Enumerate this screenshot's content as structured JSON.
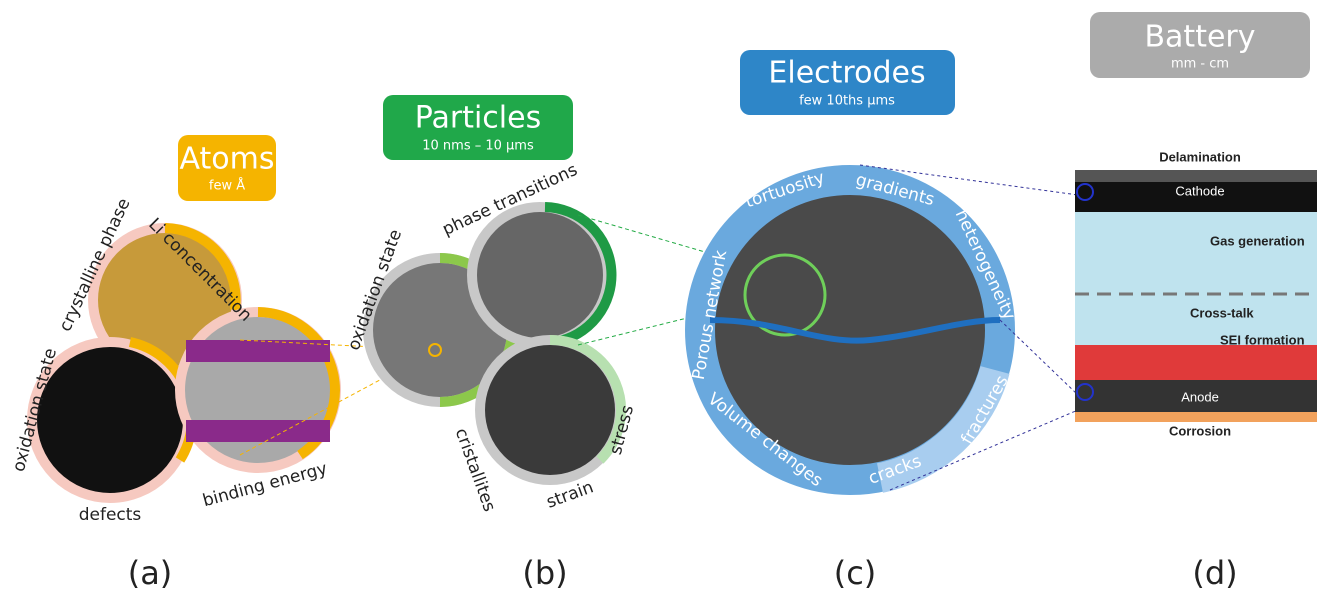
{
  "panels": [
    {
      "title": "Atoms",
      "subtitle": "few Å",
      "labels": [
        "crystalline phase",
        "Li concentration",
        "oxidation state",
        "defects",
        "binding energy"
      ],
      "caption": "(a)"
    },
    {
      "title": "Particles",
      "subtitle": "10 nms – 10 μms",
      "labels": [
        "oxidation state",
        "phase transitions",
        "cristallites",
        "strain",
        "stress"
      ],
      "caption": "(b)"
    },
    {
      "title": "Electrodes",
      "subtitle": "few 10ths μms",
      "labels": [
        "tortuosity",
        "gradients",
        "heterogeneity",
        "Porous network",
        "fractures",
        "cracks",
        "Volume changes"
      ],
      "caption": "(c)"
    },
    {
      "title": "Battery",
      "subtitle": "mm - cm",
      "labels": [
        "Delamination",
        "Cathode",
        "Gas generation",
        "Cross-talk",
        "SEI formation",
        "Anode",
        "Corrosion"
      ],
      "caption": "(d)"
    }
  ]
}
